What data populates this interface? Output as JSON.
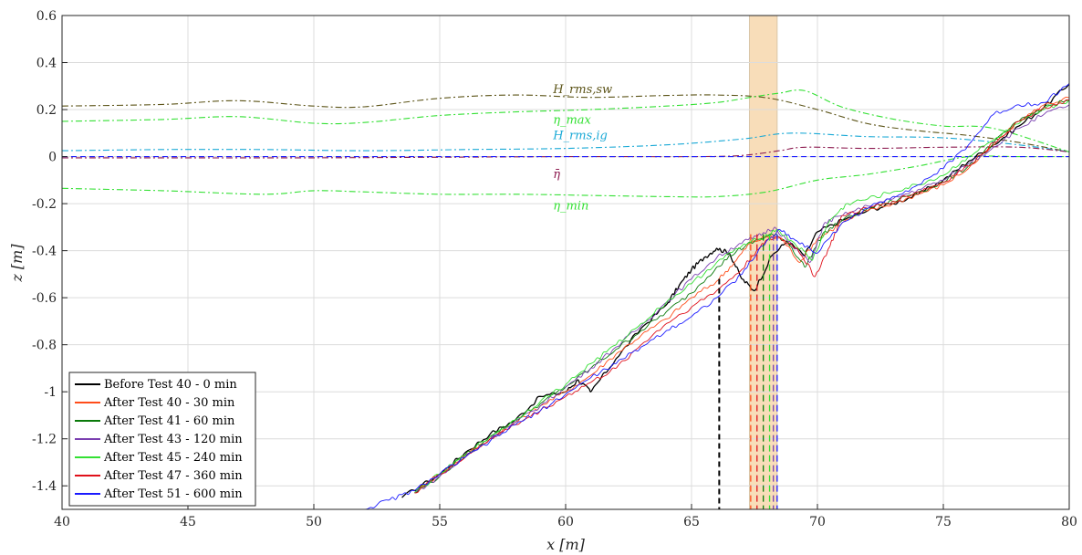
{
  "chart_data": {
    "type": "line",
    "xlabel": "x [m]",
    "ylabel": "z [m]",
    "xlim": [
      40,
      80
    ],
    "ylim": [
      -1.5,
      0.6
    ],
    "xticks": [
      40,
      45,
      50,
      55,
      60,
      65,
      70,
      75,
      80
    ],
    "yticks": [
      -1.4,
      -1.2,
      -1,
      -0.8,
      -0.6,
      -0.4,
      -0.2,
      0,
      0.2,
      0.4,
      0.6
    ],
    "grid": true,
    "legend_position": "bottom-left",
    "shaded_region": {
      "x": [
        67.3,
        68.4
      ],
      "color": "#f8ddb9"
    },
    "annotations": [
      {
        "text": "H_rms,sw",
        "x": 59.5,
        "y": 0.27,
        "color": "#5c5418"
      },
      {
        "text": "η_max",
        "x": 59.5,
        "y": 0.14,
        "color": "#33e033"
      },
      {
        "text": "H_rms,ig",
        "x": 59.5,
        "y": 0.075,
        "color": "#1aa9d6"
      },
      {
        "text": "η̄",
        "x": 59.5,
        "y": -0.09,
        "color": "#8c1a4f"
      },
      {
        "text": "η_min",
        "x": 59.5,
        "y": -0.225,
        "color": "#33e033"
      }
    ],
    "wave_series": [
      {
        "color": "#5c5418",
        "style": "dashdot",
        "x": [
          40,
          44,
          47,
          50,
          52,
          55,
          58,
          61,
          64,
          66,
          68,
          70,
          72,
          74,
          76,
          78,
          80
        ],
        "values": [
          0.215,
          0.222,
          0.238,
          0.215,
          0.212,
          0.248,
          0.262,
          0.252,
          0.26,
          0.262,
          0.25,
          0.2,
          0.14,
          0.11,
          0.09,
          0.06,
          0.02
        ]
      },
      {
        "color": "#33e033",
        "style": "dashdot",
        "x": [
          40,
          44,
          47,
          50,
          52,
          55,
          58,
          61,
          64,
          66,
          67.5,
          68.5,
          69.5,
          71,
          73,
          75,
          77,
          80
        ],
        "values": [
          0.15,
          0.158,
          0.17,
          0.142,
          0.145,
          0.175,
          0.19,
          0.2,
          0.215,
          0.23,
          0.255,
          0.27,
          0.28,
          0.21,
          0.16,
          0.13,
          0.12,
          0.02
        ]
      },
      {
        "color": "#1aa9d6",
        "style": "dashdot",
        "x": [
          40,
          44,
          48,
          52,
          56,
          60,
          64,
          67,
          69,
          72,
          75,
          78,
          80
        ],
        "values": [
          0.025,
          0.03,
          0.03,
          0.025,
          0.03,
          0.035,
          0.05,
          0.075,
          0.1,
          0.085,
          0.08,
          0.05,
          0.02
        ]
      },
      {
        "color": "#8c1a4f",
        "style": "dashdot",
        "x": [
          40,
          50,
          60,
          65,
          67,
          68.5,
          69.5,
          72,
          75,
          78,
          80
        ],
        "values": [
          -0.005,
          -0.005,
          0,
          0,
          0.005,
          0.025,
          0.04,
          0.035,
          0.04,
          0.04,
          0.02
        ]
      },
      {
        "color": "#33e033",
        "style": "dashdot",
        "x": [
          40,
          44,
          48,
          50,
          52,
          55,
          58,
          61,
          64,
          66,
          68,
          70,
          72,
          74,
          76,
          78,
          80
        ],
        "values": [
          -0.135,
          -0.145,
          -0.16,
          -0.145,
          -0.15,
          -0.16,
          -0.16,
          -0.165,
          -0.17,
          -0.17,
          -0.15,
          -0.1,
          -0.075,
          -0.04,
          0,
          0,
          0
        ]
      },
      {
        "color": "#1a1aff",
        "style": "dashed",
        "x": [
          40,
          80
        ],
        "values": [
          0,
          0
        ]
      }
    ],
    "series": [
      {
        "name": "Before Test 40 - 0 min",
        "color": "#000000",
        "x": [
          53.5,
          55,
          56,
          57,
          58,
          59,
          60,
          60.5,
          61,
          62,
          63,
          64,
          64.5,
          65,
          65.5,
          66,
          66.5,
          67,
          67.5,
          68.2,
          68.8,
          69.5,
          70,
          71,
          72,
          73,
          74,
          75,
          76,
          77,
          78,
          79,
          80
        ],
        "values": [
          -1.45,
          -1.35,
          -1.26,
          -1.18,
          -1.12,
          -1.02,
          -1.0,
          -0.95,
          -1.0,
          -0.86,
          -0.73,
          -0.63,
          -0.55,
          -0.48,
          -0.43,
          -0.39,
          -0.41,
          -0.52,
          -0.57,
          -0.42,
          -0.36,
          -0.42,
          -0.32,
          -0.27,
          -0.23,
          -0.2,
          -0.16,
          -0.1,
          -0.02,
          0.05,
          0.13,
          0.21,
          0.31
        ]
      },
      {
        "name": "After Test 40 - 30 min",
        "color": "#ff4d1a",
        "x": [
          54,
          55,
          56,
          57,
          58,
          59,
          60,
          61,
          62,
          63,
          64,
          65,
          66,
          66.7,
          67.3,
          68,
          68.6,
          69.3,
          70,
          71,
          72,
          73,
          74,
          75,
          76,
          77,
          78,
          79,
          80
        ],
        "values": [
          -1.43,
          -1.35,
          -1.27,
          -1.2,
          -1.13,
          -1.06,
          -1.0,
          -0.93,
          -0.84,
          -0.76,
          -0.69,
          -0.6,
          -0.53,
          -0.45,
          -0.37,
          -0.34,
          -0.35,
          -0.45,
          -0.35,
          -0.28,
          -0.23,
          -0.2,
          -0.16,
          -0.12,
          -0.05,
          0.05,
          0.15,
          0.22,
          0.25
        ]
      },
      {
        "name": "After Test 41 - 60 min",
        "color": "#0a7a0a",
        "x": [
          54,
          55,
          56,
          57,
          58,
          59,
          60,
          61,
          62,
          63,
          64,
          65,
          66,
          66.8,
          67.5,
          68.2,
          68.8,
          69.5,
          70.2,
          71,
          72,
          73,
          74,
          75,
          76,
          77,
          78,
          79,
          80
        ],
        "values": [
          -1.43,
          -1.36,
          -1.27,
          -1.19,
          -1.12,
          -1.05,
          -0.98,
          -0.9,
          -0.82,
          -0.74,
          -0.66,
          -0.58,
          -0.47,
          -0.4,
          -0.36,
          -0.33,
          -0.36,
          -0.47,
          -0.33,
          -0.27,
          -0.22,
          -0.19,
          -0.15,
          -0.11,
          -0.04,
          0.06,
          0.15,
          0.21,
          0.24
        ]
      },
      {
        "name": "After Test 43 - 120 min",
        "color": "#7a3fb0",
        "x": [
          54,
          55,
          56,
          57,
          58,
          59,
          60,
          61,
          62,
          63,
          64,
          65,
          66,
          66.9,
          67.6,
          68.3,
          69,
          69.7,
          70.3,
          71,
          72,
          73,
          74,
          75,
          76,
          77,
          78,
          79,
          80
        ],
        "values": [
          -1.43,
          -1.36,
          -1.28,
          -1.2,
          -1.13,
          -1.06,
          -0.98,
          -0.9,
          -0.81,
          -0.72,
          -0.62,
          -0.52,
          -0.43,
          -0.37,
          -0.34,
          -0.3,
          -0.38,
          -0.45,
          -0.28,
          -0.25,
          -0.21,
          -0.18,
          -0.14,
          -0.1,
          -0.03,
          0.04,
          0.12,
          0.18,
          0.22
        ]
      },
      {
        "name": "After Test 45 - 240 min",
        "color": "#33e033",
        "x": [
          54,
          55,
          56,
          57,
          58,
          59,
          60,
          61,
          62,
          63,
          64,
          65,
          66,
          67,
          67.7,
          68.4,
          69.1,
          69.8,
          70.5,
          71.2,
          72,
          73,
          74,
          75,
          76,
          77,
          78,
          79,
          80
        ],
        "values": [
          -1.43,
          -1.35,
          -1.27,
          -1.19,
          -1.12,
          -1.04,
          -0.97,
          -0.88,
          -0.8,
          -0.71,
          -0.62,
          -0.54,
          -0.45,
          -0.38,
          -0.35,
          -0.31,
          -0.37,
          -0.44,
          -0.27,
          -0.2,
          -0.18,
          -0.15,
          -0.12,
          -0.08,
          0.0,
          0.07,
          0.14,
          0.2,
          0.24
        ]
      },
      {
        "name": "After Test 47 - 360 min",
        "color": "#e0101a",
        "x": [
          54,
          55,
          56,
          57,
          58,
          59,
          60,
          61,
          62,
          63,
          64,
          65,
          66,
          67,
          67.8,
          68.4,
          69.2,
          69.9,
          70.5,
          71,
          72,
          73,
          74,
          75,
          76,
          77,
          78,
          79,
          80
        ],
        "values": [
          -1.43,
          -1.35,
          -1.28,
          -1.2,
          -1.14,
          -1.08,
          -1.02,
          -0.96,
          -0.9,
          -0.8,
          -0.71,
          -0.64,
          -0.57,
          -0.48,
          -0.37,
          -0.34,
          -0.39,
          -0.51,
          -0.38,
          -0.25,
          -0.22,
          -0.19,
          -0.15,
          -0.11,
          -0.04,
          0.06,
          0.15,
          0.21,
          0.24
        ]
      },
      {
        "name": "After Test 51 - 600 min",
        "color": "#1a1aff",
        "x": [
          52,
          53,
          54,
          55,
          56,
          57,
          58,
          59,
          60,
          61,
          62,
          63,
          64,
          65,
          66,
          67,
          67.8,
          68.5,
          69.2,
          70,
          71,
          72,
          73,
          74,
          75,
          76,
          77,
          78,
          79,
          80
        ],
        "values": [
          -1.5,
          -1.46,
          -1.42,
          -1.35,
          -1.28,
          -1.21,
          -1.14,
          -1.08,
          -1.01,
          -0.94,
          -0.88,
          -0.81,
          -0.74,
          -0.68,
          -0.6,
          -0.5,
          -0.38,
          -0.31,
          -0.36,
          -0.41,
          -0.28,
          -0.22,
          -0.17,
          -0.12,
          -0.05,
          0.05,
          0.18,
          0.22,
          0.23,
          0.31
        ]
      }
    ],
    "breaking_markers": [
      {
        "x": 66.1,
        "color": "#000000"
      },
      {
        "x": 67.35,
        "color": "#ff4d1a"
      },
      {
        "x": 67.6,
        "color": "#e0101a"
      },
      {
        "x": 67.85,
        "color": "#0a7a0a"
      },
      {
        "x": 68.1,
        "color": "#33e033"
      },
      {
        "x": 68.25,
        "color": "#7a3fb0"
      },
      {
        "x": 68.4,
        "color": "#1a1aff"
      }
    ]
  }
}
